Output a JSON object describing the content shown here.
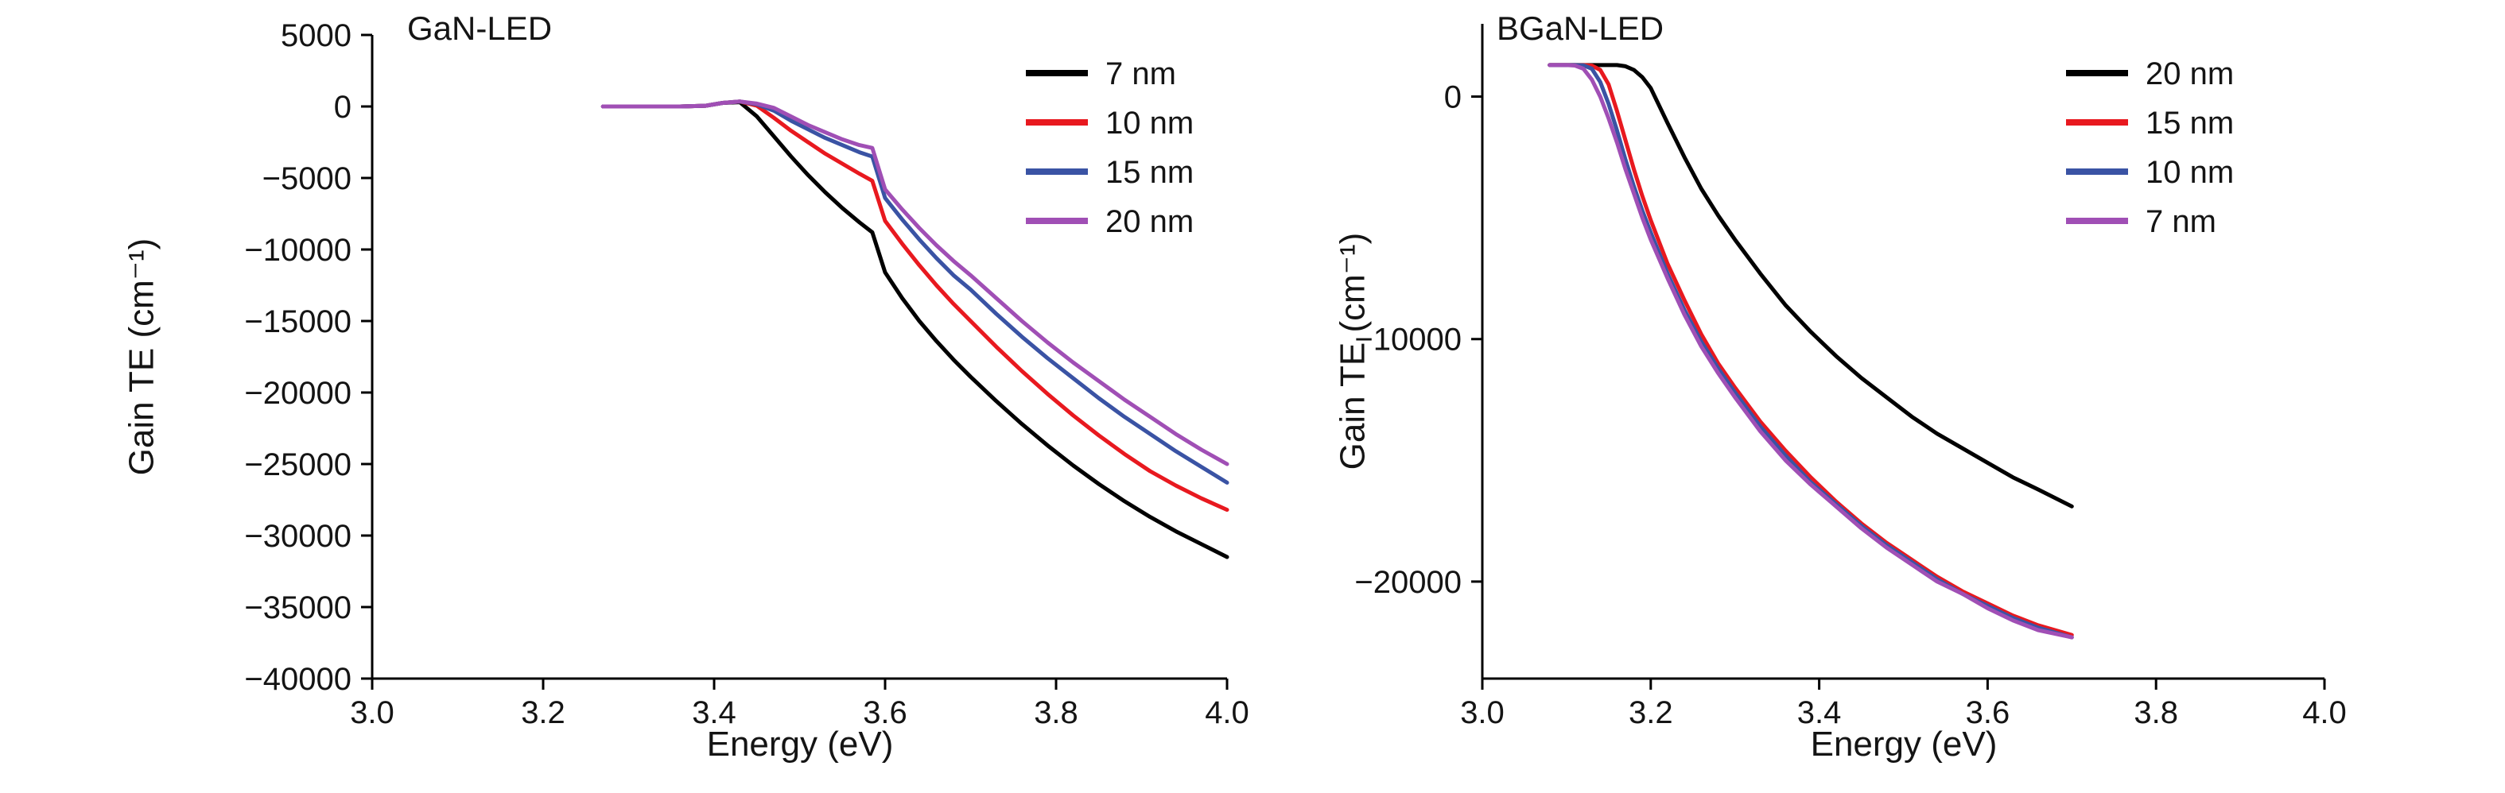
{
  "figure": {
    "background": "#ffffff"
  },
  "chart_data": [
    {
      "type": "line",
      "title": "GaN-LED",
      "xlabel": "Energy (eV)",
      "ylabel": "Gain TE (cm⁻¹)",
      "xlim": [
        3.0,
        4.0
      ],
      "ylim": [
        -40000,
        5000
      ],
      "xticks": [
        3.0,
        3.2,
        3.4,
        3.6,
        3.8,
        4.0
      ],
      "xtick_labels": [
        "3.0",
        "3.2",
        "3.4",
        "3.6",
        "3.8",
        "4.0"
      ],
      "yticks": [
        5000,
        0,
        -5000,
        -10000,
        -15000,
        -20000,
        -25000,
        -30000,
        -35000,
        -40000
      ],
      "ytick_labels": [
        "5000",
        "0",
        "−5000",
        "−10000",
        "−15000",
        "−20000",
        "−25000",
        "−30000",
        "−35000",
        "−40000"
      ],
      "grid": false,
      "legend_position": "upper right",
      "series": [
        {
          "name": "7 nm",
          "color": "#000000",
          "x": [
            3.27,
            3.3,
            3.33,
            3.36,
            3.39,
            3.41,
            3.43,
            3.45,
            3.47,
            3.49,
            3.51,
            3.53,
            3.55,
            3.57,
            3.585,
            3.6,
            3.62,
            3.64,
            3.66,
            3.68,
            3.7,
            3.73,
            3.76,
            3.79,
            3.82,
            3.85,
            3.88,
            3.91,
            3.94,
            3.97,
            4.0
          ],
          "y": [
            0,
            0,
            0,
            0,
            50,
            250,
            300,
            -700,
            -2100,
            -3500,
            -4800,
            -6000,
            -7100,
            -8100,
            -8800,
            -11600,
            -13400,
            -15000,
            -16400,
            -17700,
            -18900,
            -20600,
            -22200,
            -23700,
            -25100,
            -26400,
            -27600,
            -28700,
            -29700,
            -30600,
            -31500
          ]
        },
        {
          "name": "10 nm",
          "color": "#e8191f",
          "x": [
            3.27,
            3.3,
            3.33,
            3.36,
            3.39,
            3.41,
            3.43,
            3.45,
            3.47,
            3.49,
            3.51,
            3.53,
            3.55,
            3.57,
            3.585,
            3.6,
            3.62,
            3.64,
            3.66,
            3.68,
            3.7,
            3.73,
            3.76,
            3.79,
            3.82,
            3.85,
            3.88,
            3.91,
            3.94,
            3.97,
            4.0
          ],
          "y": [
            0,
            0,
            0,
            0,
            50,
            250,
            350,
            50,
            -800,
            -1700,
            -2500,
            -3300,
            -4000,
            -4700,
            -5200,
            -8000,
            -9600,
            -11100,
            -12500,
            -13800,
            -15000,
            -16800,
            -18500,
            -20100,
            -21600,
            -23000,
            -24300,
            -25500,
            -26500,
            -27400,
            -28200
          ]
        },
        {
          "name": "15 nm",
          "color": "#3a53a4",
          "x": [
            3.27,
            3.3,
            3.33,
            3.36,
            3.39,
            3.41,
            3.43,
            3.45,
            3.47,
            3.49,
            3.51,
            3.53,
            3.55,
            3.57,
            3.585,
            3.6,
            3.62,
            3.64,
            3.66,
            3.68,
            3.7,
            3.73,
            3.76,
            3.79,
            3.82,
            3.85,
            3.88,
            3.91,
            3.94,
            3.97,
            4.0
          ],
          "y": [
            0,
            0,
            0,
            0,
            50,
            250,
            350,
            150,
            -300,
            -1000,
            -1600,
            -2200,
            -2700,
            -3200,
            -3500,
            -6400,
            -7900,
            -9300,
            -10600,
            -11800,
            -12800,
            -14500,
            -16100,
            -17600,
            -19000,
            -20400,
            -21700,
            -22900,
            -24100,
            -25200,
            -26300
          ]
        },
        {
          "name": "20 nm",
          "color": "#a04fb5",
          "x": [
            3.27,
            3.3,
            3.33,
            3.36,
            3.39,
            3.41,
            3.43,
            3.45,
            3.47,
            3.49,
            3.51,
            3.53,
            3.55,
            3.57,
            3.585,
            3.6,
            3.62,
            3.64,
            3.66,
            3.68,
            3.7,
            3.73,
            3.76,
            3.79,
            3.82,
            3.85,
            3.88,
            3.91,
            3.94,
            3.97,
            4.0
          ],
          "y": [
            0,
            0,
            0,
            0,
            50,
            250,
            350,
            200,
            -100,
            -700,
            -1300,
            -1800,
            -2300,
            -2700,
            -2900,
            -5800,
            -7200,
            -8500,
            -9700,
            -10800,
            -11800,
            -13400,
            -15000,
            -16500,
            -17900,
            -19200,
            -20500,
            -21700,
            -22900,
            -24000,
            -25000
          ]
        }
      ]
    },
    {
      "type": "line",
      "title": "BGaN-LED",
      "xlabel": "Energy (eV)",
      "ylabel": "Gain TE (cm⁻¹)",
      "xlim": [
        3.0,
        4.0
      ],
      "ylim": [
        -24000,
        3000
      ],
      "xticks": [
        3.0,
        3.2,
        3.4,
        3.6,
        3.8,
        4.0
      ],
      "xtick_labels": [
        "3.0",
        "3.2",
        "3.4",
        "3.6",
        "3.8",
        "4.0"
      ],
      "yticks": [
        0,
        -10000,
        -20000
      ],
      "ytick_labels": [
        "0",
        "−10000",
        "−20000"
      ],
      "grid": false,
      "legend_position": "upper right",
      "series": [
        {
          "name": "20 nm",
          "color": "#000000",
          "x": [
            3.08,
            3.1,
            3.11,
            3.12,
            3.13,
            3.14,
            3.15,
            3.16,
            3.17,
            3.18,
            3.19,
            3.2,
            3.22,
            3.24,
            3.26,
            3.28,
            3.3,
            3.33,
            3.36,
            3.39,
            3.42,
            3.45,
            3.48,
            3.51,
            3.54,
            3.57,
            3.6,
            3.63,
            3.66,
            3.7
          ],
          "y": [
            1300,
            1300,
            1300,
            1300,
            1300,
            1300,
            1300,
            1300,
            1250,
            1100,
            800,
            350,
            -1100,
            -2500,
            -3800,
            -4900,
            -5900,
            -7300,
            -8600,
            -9700,
            -10700,
            -11600,
            -12400,
            -13200,
            -13900,
            -14500,
            -15100,
            -15700,
            -16200,
            -16900
          ]
        },
        {
          "name": "15 nm",
          "color": "#e8191f",
          "x": [
            3.08,
            3.1,
            3.11,
            3.12,
            3.13,
            3.14,
            3.15,
            3.16,
            3.17,
            3.18,
            3.19,
            3.2,
            3.22,
            3.24,
            3.26,
            3.28,
            3.3,
            3.33,
            3.36,
            3.39,
            3.42,
            3.45,
            3.48,
            3.51,
            3.54,
            3.57,
            3.6,
            3.63,
            3.66,
            3.7
          ],
          "y": [
            1300,
            1300,
            1300,
            1300,
            1280,
            1100,
            500,
            -600,
            -1800,
            -3000,
            -4100,
            -5100,
            -6900,
            -8400,
            -9800,
            -11000,
            -12000,
            -13400,
            -14600,
            -15700,
            -16700,
            -17600,
            -18400,
            -19100,
            -19800,
            -20400,
            -20900,
            -21400,
            -21800,
            -22200
          ]
        },
        {
          "name": "10 nm",
          "color": "#3a53a4",
          "x": [
            3.08,
            3.1,
            3.11,
            3.12,
            3.13,
            3.14,
            3.15,
            3.16,
            3.17,
            3.18,
            3.19,
            3.2,
            3.22,
            3.24,
            3.26,
            3.28,
            3.3,
            3.33,
            3.36,
            3.39,
            3.42,
            3.45,
            3.48,
            3.51,
            3.54,
            3.57,
            3.6,
            3.63,
            3.66,
            3.7
          ],
          "y": [
            1300,
            1300,
            1300,
            1290,
            1150,
            600,
            -300,
            -1400,
            -2600,
            -3700,
            -4700,
            -5600,
            -7300,
            -8800,
            -10100,
            -11200,
            -12200,
            -13600,
            -14800,
            -15900,
            -16800,
            -17700,
            -18500,
            -19200,
            -19900,
            -20500,
            -21000,
            -21500,
            -21900,
            -22300
          ]
        },
        {
          "name": "7 nm",
          "color": "#a04fb5",
          "x": [
            3.08,
            3.1,
            3.11,
            3.12,
            3.13,
            3.14,
            3.15,
            3.16,
            3.17,
            3.18,
            3.19,
            3.2,
            3.22,
            3.24,
            3.26,
            3.28,
            3.3,
            3.33,
            3.36,
            3.39,
            3.42,
            3.45,
            3.48,
            3.51,
            3.54,
            3.57,
            3.6,
            3.63,
            3.66,
            3.7
          ],
          "y": [
            1300,
            1300,
            1280,
            1150,
            700,
            0,
            -900,
            -1900,
            -3000,
            -4000,
            -5000,
            -5900,
            -7500,
            -9000,
            -10300,
            -11400,
            -12400,
            -13800,
            -15000,
            -16000,
            -16900,
            -17800,
            -18600,
            -19300,
            -20000,
            -20500,
            -21100,
            -21600,
            -22000,
            -22300
          ]
        }
      ]
    }
  ]
}
